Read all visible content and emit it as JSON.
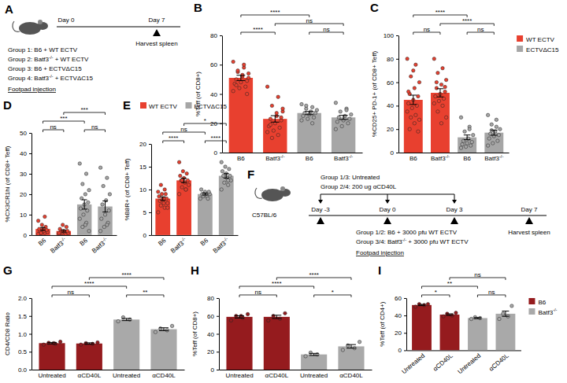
{
  "chart_data": [
    {
      "panel": "B",
      "type": "bar",
      "ylabel": "%Teff (of CD8+)",
      "categories": [
        "B6",
        "Batf3-/-",
        "B6",
        "Batf3-/-"
      ],
      "ylim": [
        0,
        80
      ],
      "yticks": [
        0,
        20,
        40,
        60,
        80
      ],
      "series": [
        {
          "color": "#e8402f",
          "values": [
            51,
            23,
            null,
            null
          ],
          "errors": [
            1.8,
            2.2,
            null,
            null
          ],
          "points": [
            [
              62,
              58,
              55,
              54,
              52,
              50,
              49,
              48,
              47,
              45,
              44,
              42,
              60,
              56,
              51,
              53,
              46,
              40
            ],
            [
              45,
              38,
              32,
              28,
              25,
              23,
              22,
              20,
              18,
              17,
              15,
              14,
              12,
              10,
              30,
              27,
              19,
              24
            ],
            null,
            null
          ]
        },
        {
          "color": "#a6a6a6",
          "values": [
            null,
            null,
            27,
            24
          ],
          "errors": [
            null,
            null,
            1.1,
            1.4
          ],
          "points": [
            null,
            null,
            [
              33,
              31,
              30,
              29,
              28,
              27,
              27,
              26,
              25,
              24,
              23,
              22,
              20,
              32
            ],
            [
              34,
              30,
              28,
              26,
              25,
              24,
              23,
              22,
              21,
              20,
              18,
              16,
              29
            ]
          ]
        }
      ],
      "annotations": [
        {
          "from": 0,
          "to": 1,
          "text": "****"
        },
        {
          "from": 2,
          "to": 3,
          "text": "ns"
        },
        {
          "from": 1,
          "to": 3,
          "text": "ns"
        },
        {
          "from": 0,
          "to": 2,
          "text": "****"
        }
      ]
    },
    {
      "panel": "C",
      "type": "bar",
      "ylabel": "%CD25+ PD-1+ (of CD8+ Teff)",
      "categories": [
        "B6",
        "Batf3-/-",
        "B6",
        "Batf3-/-"
      ],
      "ylim": [
        0,
        100
      ],
      "yticks": [
        0,
        20,
        40,
        60,
        80,
        100
      ],
      "legend": "right",
      "series": [
        {
          "name": "WT ECTV",
          "color": "#e8402f",
          "values": [
            45,
            51,
            null,
            null
          ],
          "errors": [
            4,
            3.5,
            null,
            null
          ],
          "points": [
            [
              80,
              75,
              65,
              60,
              55,
              50,
              48,
              45,
              42,
              40,
              38,
              35,
              32,
              30,
              28,
              25,
              20,
              18,
              70,
              52
            ],
            [
              80,
              72,
              68,
              62,
              58,
              55,
              52,
              50,
              48,
              46,
              44,
              42,
              40,
              35,
              30,
              25,
              60,
              56
            ],
            null,
            null
          ]
        },
        {
          "name": "ECTVΔC15",
          "color": "#a6a6a6",
          "values": [
            null,
            null,
            13,
            17
          ],
          "errors": [
            null,
            null,
            2,
            2.2
          ],
          "points": [
            null,
            null,
            [
              30,
              22,
              18,
              15,
              12,
              10,
              9,
              8,
              7,
              6,
              5,
              4,
              20
            ],
            [
              32,
              28,
              24,
              20,
              18,
              16,
              15,
              14,
              12,
              10,
              8,
              6,
              22,
              19
            ]
          ]
        }
      ],
      "annotations": [
        {
          "from": 0,
          "to": 1,
          "text": "ns"
        },
        {
          "from": 2,
          "to": 3,
          "text": "ns"
        },
        {
          "from": 1,
          "to": 3,
          "text": "****"
        },
        {
          "from": 0,
          "to": 2,
          "text": "****"
        }
      ]
    },
    {
      "panel": "D",
      "type": "bar",
      "ylabel": "%CX3CR1hi (of CD8+ Teff)",
      "categories": [
        "B6",
        "Batf3-/-",
        "B6",
        "Batf3-/-"
      ],
      "ylim": [
        0,
        50
      ],
      "yticks": [
        0,
        10,
        20,
        30,
        40,
        50
      ],
      "series": [
        {
          "color": "#e8402f",
          "values": [
            3,
            2,
            null,
            null
          ],
          "errors": [
            0.7,
            0.5,
            null,
            null
          ],
          "points": [
            [
              0.5,
              1,
              1,
              1.5,
              2,
              2,
              2.5,
              3,
              3,
              4,
              5,
              7,
              9,
              1
            ],
            [
              0.5,
              0.5,
              1,
              1,
              1.5,
              1.5,
              2,
              2,
              3,
              4,
              5,
              1
            ],
            null,
            null
          ]
        },
        {
          "color": "#a6a6a6",
          "values": [
            null,
            null,
            15,
            14
          ],
          "errors": [
            null,
            null,
            2.3,
            2.7
          ],
          "points": [
            null,
            null,
            [
              35,
              30,
              25,
              22,
              20,
              18,
              16,
              15,
              13,
              12,
              10,
              8,
              6,
              4,
              2,
              5
            ],
            [
              33,
              28,
              24,
              20,
              17,
              15,
              12,
              10,
              8,
              6,
              4,
              2,
              5
            ]
          ]
        }
      ],
      "annotations": [
        {
          "from": 0,
          "to": 1,
          "text": "ns"
        },
        {
          "from": 2,
          "to": 3,
          "text": "ns"
        },
        {
          "from": 0,
          "to": 2,
          "text": "***"
        },
        {
          "from": 1,
          "to": 3,
          "text": "***"
        }
      ]
    },
    {
      "panel": "E",
      "type": "bar",
      "ylabel": "%B8R+ (of CD8+ Teff)",
      "categories": [
        "B6",
        "Batf3-/-",
        "B6",
        "Batf3-/-"
      ],
      "ylim": [
        0,
        20
      ],
      "yticks": [
        0,
        5,
        10,
        15,
        20
      ],
      "legend": "top",
      "series": [
        {
          "name": "WT ECTV",
          "color": "#e8402f",
          "values": [
            8,
            12,
            null,
            null
          ],
          "errors": [
            0.4,
            0.5,
            null,
            null
          ],
          "points": [
            [
              5,
              6,
              6.5,
              7,
              7,
              7.5,
              8,
              8,
              8.5,
              9,
              9,
              9.5,
              10,
              11,
              6,
              8
            ],
            [
              9,
              10,
              10.5,
              11,
              11.5,
              12,
              12,
              12.5,
              13,
              13.5,
              14,
              16,
              10,
              12
            ],
            null,
            null
          ]
        },
        {
          "name": "ECTVΔC15",
          "color": "#a6a6a6",
          "values": [
            null,
            null,
            9,
            13
          ],
          "errors": [
            null,
            null,
            0.2,
            0.5
          ],
          "points": [
            null,
            null,
            [
              8,
              8.5,
              8.5,
              9,
              9,
              9,
              9.5,
              9.5,
              10,
              8,
              9
            ],
            [
              10,
              11,
              11.5,
              12,
              12.5,
              13,
              13,
              13.5,
              14,
              14.5,
              15,
              16,
              12
            ]
          ]
        }
      ],
      "annotations": [
        {
          "from": 0,
          "to": 1,
          "text": "****"
        },
        {
          "from": 2,
          "to": 3,
          "text": "****"
        },
        {
          "from": 0,
          "to": 2,
          "text": "ns"
        },
        {
          "from": 1,
          "to": 3,
          "text": "*"
        }
      ]
    },
    {
      "panel": "G",
      "type": "bar",
      "ylabel": "CD4/CD8 Ratio",
      "categories": [
        "Untreated",
        "αCD40L",
        "Untreated",
        "αCD40L"
      ],
      "ylim": [
        0,
        2
      ],
      "yticks": [
        {
          "value": 0,
          "label": "0.0"
        },
        0.5,
        {
          "value": 1,
          "label": "1.0"
        },
        1.5,
        {
          "value": 2,
          "label": "2.0"
        }
      ],
      "series": [
        {
          "color": "#951b1e",
          "values": [
            0.74,
            0.73,
            null,
            null
          ],
          "errors": [
            0.02,
            0.02,
            null,
            null
          ],
          "points": [
            [
              0.7,
              0.72,
              0.75,
              0.78,
              0.74
            ],
            [
              0.7,
              0.72,
              0.74,
              0.76
            ],
            null,
            null
          ]
        },
        {
          "color": "#a9a9a9",
          "values": [
            null,
            null,
            1.4,
            1.13
          ],
          "errors": [
            null,
            null,
            0.03,
            0.04
          ],
          "points": [
            null,
            null,
            [
              1.35,
              1.4,
              1.46
            ],
            [
              1.05,
              1.1,
              1.15,
              1.22
            ]
          ]
        }
      ],
      "annotations": [
        {
          "from": 0,
          "to": 1,
          "text": "ns"
        },
        {
          "from": 2,
          "to": 3,
          "text": "**"
        },
        {
          "from": 0,
          "to": 2,
          "text": "****"
        },
        {
          "from": 1,
          "to": 3,
          "text": "****"
        }
      ]
    },
    {
      "panel": "H",
      "type": "bar",
      "ylabel": "%Teff (of CD8+)",
      "categories": [
        "Untreated",
        "αCD40L",
        "Untreated",
        "αCD40L"
      ],
      "ylim": [
        0,
        80
      ],
      "yticks": [
        0,
        20,
        40,
        60,
        80
      ],
      "series": [
        {
          "color": "#951b1e",
          "values": [
            59,
            59,
            null,
            null
          ],
          "errors": [
            1.3,
            1.8,
            null,
            null
          ],
          "points": [
            [
              55,
              58,
              60,
              62,
              60
            ],
            [
              55,
              57,
              60,
              63
            ],
            null,
            null
          ]
        },
        {
          "color": "#a9a9a9",
          "values": [
            null,
            null,
            17,
            26
          ],
          "errors": [
            null,
            null,
            1.2,
            2
          ],
          "points": [
            null,
            null,
            [
              15,
              17,
              19
            ],
            [
              22,
              24,
              27,
              31
            ]
          ]
        }
      ],
      "annotations": [
        {
          "from": 0,
          "to": 1,
          "text": "ns"
        },
        {
          "from": 2,
          "to": 3,
          "text": "*"
        },
        {
          "from": 0,
          "to": 2,
          "text": "****"
        },
        {
          "from": 1,
          "to": 3,
          "text": "****"
        }
      ]
    },
    {
      "panel": "I",
      "type": "bar",
      "ylabel": "%Teff (of CD4+)",
      "categories": [
        "Untreated",
        "αCD40L",
        "Untreated",
        "αCD40L"
      ],
      "ylim": [
        0,
        60
      ],
      "yticks": [
        0,
        20,
        40,
        60
      ],
      "legend": "right",
      "series": [
        {
          "name": "B6",
          "color": "#951b1e",
          "values": [
            52,
            41,
            null,
            null
          ],
          "errors": [
            0.7,
            0.9,
            null,
            null
          ],
          "points": [
            [
              50,
              52,
              53,
              53
            ],
            [
              39,
              40,
              42,
              43
            ],
            null,
            null
          ]
        },
        {
          "name": "Batf3-/-",
          "color": "#a9a9a9",
          "values": [
            null,
            null,
            37,
            42
          ],
          "errors": [
            null,
            null,
            0.6,
            3
          ],
          "points": [
            null,
            null,
            [
              36,
              37,
              38
            ],
            [
              36,
              39,
              42,
              51
            ]
          ]
        }
      ],
      "annotations": [
        {
          "from": 0,
          "to": 1,
          "text": "*"
        },
        {
          "from": 2,
          "to": 3,
          "text": "ns"
        },
        {
          "from": 0,
          "to": 2,
          "text": "**"
        },
        {
          "from": 1,
          "to": 3,
          "text": "ns"
        }
      ]
    }
  ],
  "diagrams": [
    {
      "panel": "A",
      "timeline": [
        "Day 0",
        "Day 7"
      ],
      "groups": [
        "Group 1: B6 + WT ECTV",
        "Group 2: Batf3-/- + WT ECTV",
        "Group 3: B6 + ECTVΔC15",
        "Group 4: Batf3-/- + ECTVΔC15"
      ],
      "route": "Footpad injection",
      "endpoint": "Harvest spleen"
    },
    {
      "panel": "F",
      "strain": "C57BL/6",
      "treatments": [
        "Group 1/3: Untreated",
        "Group 2/4: 200 ug αCD40L"
      ],
      "timeline": [
        "Day -3",
        "Day 0",
        "Day 3",
        "Day 7"
      ],
      "infections": [
        "Group 1/2: B6 + 3000 pfu WT ECTV",
        "Group 3/4: Batf3-/- + 3000 pfu WT ECTV"
      ],
      "route": "Footpad injection",
      "endpoint": "Harvest spleen"
    }
  ]
}
